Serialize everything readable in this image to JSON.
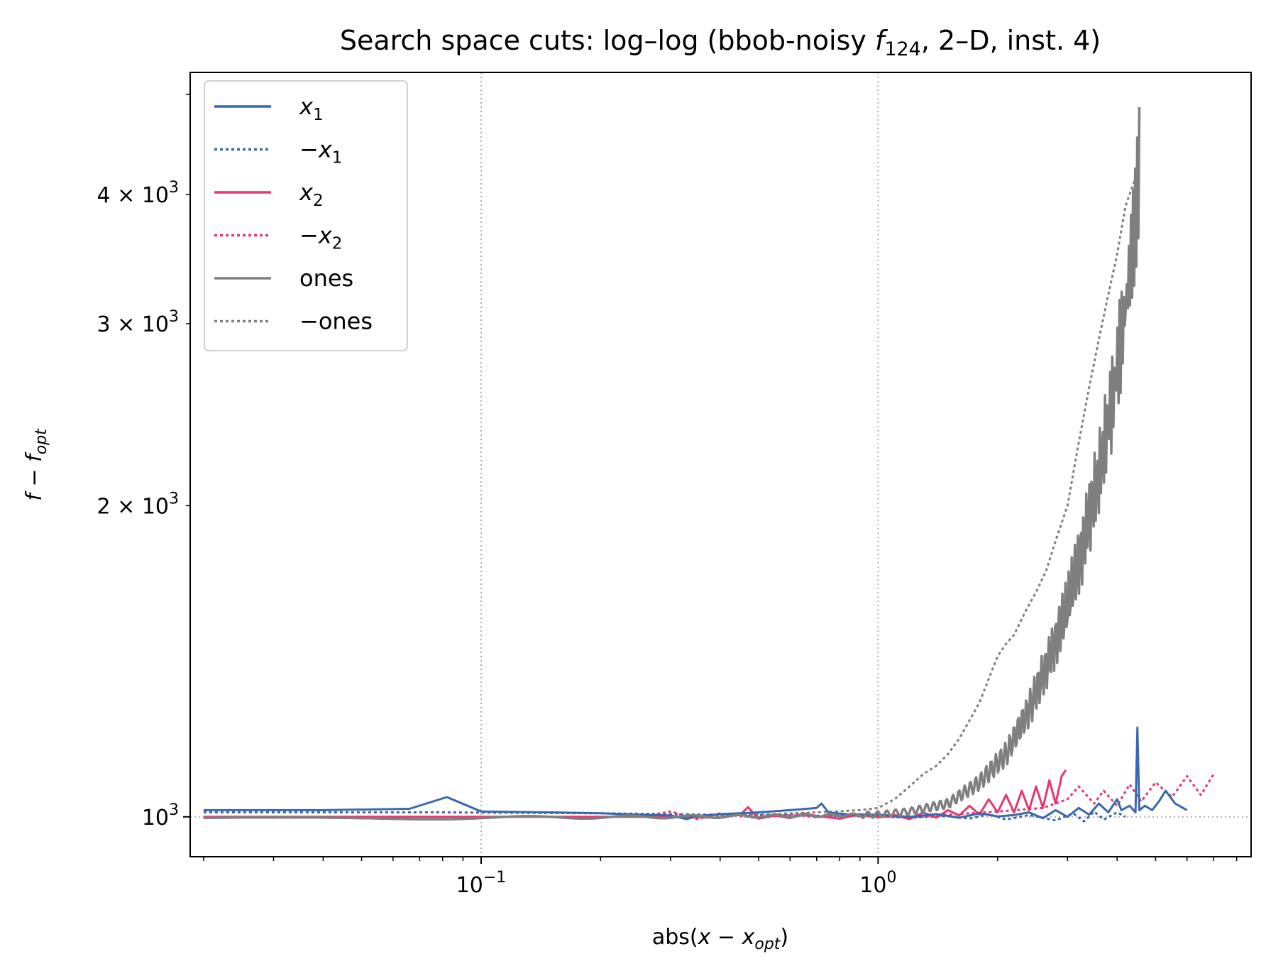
{
  "chart_data": {
    "type": "line",
    "title": "Search space cuts: log–log (bbob-noisy f124, 2–D, inst. 4)",
    "title_parts": {
      "main": "Search space cuts: log–log (bbob-noisy ",
      "func": "f",
      "func_sub": "124",
      "rest": ", 2–D, inst. 4)"
    },
    "xlabel": {
      "a": "abs(",
      "b": "x",
      "c": " − ",
      "d": "x",
      "e": "opt",
      "f": ")"
    },
    "ylabel": {
      "a": "f",
      "b": " − ",
      "c": "f",
      "d": "opt"
    },
    "x_scale": "log",
    "y_scale": "log",
    "xlim": [
      0.0185,
      8.7
    ],
    "ylim": [
      915,
      5250
    ],
    "x_ticks": [
      {
        "value": 0.1,
        "base": "10",
        "exp": "−1"
      },
      {
        "value": 1,
        "base": "10",
        "exp": "0"
      }
    ],
    "y_ticks": [
      {
        "value": 1000,
        "coef": "",
        "base": "10",
        "exp": "3"
      },
      {
        "value": 2000,
        "coef": "2 × ",
        "base": "10",
        "exp": "3"
      },
      {
        "value": 3000,
        "coef": "3 × ",
        "base": "10",
        "exp": "3"
      },
      {
        "value": 4000,
        "coef": "4 × ",
        "base": "10",
        "exp": "3"
      }
    ],
    "grid": {
      "x_lines": [
        0.1,
        1
      ],
      "y_lines": [
        1000
      ],
      "style": "dotted"
    },
    "legend": {
      "position": "top-left",
      "entries": [
        {
          "label_main": "x",
          "label_sub": "1",
          "prefix": "",
          "color": "#3a67ad",
          "dash": "solid"
        },
        {
          "label_main": "x",
          "label_sub": "1",
          "prefix": "−",
          "color": "#3a67ad",
          "dash": "dotted"
        },
        {
          "label_main": "x",
          "label_sub": "2",
          "prefix": "",
          "color": "#e8366f",
          "dash": "solid"
        },
        {
          "label_main": "x",
          "label_sub": "2",
          "prefix": "−",
          "color": "#e8366f",
          "dash": "dotted"
        },
        {
          "label_main": "ones",
          "label_sub": "",
          "prefix": "",
          "color": "#7f7f7f",
          "dash": "solid"
        },
        {
          "label_main": "ones",
          "label_sub": "",
          "prefix": "−",
          "color": "#7f7f7f",
          "dash": "dotted"
        }
      ]
    },
    "series": [
      {
        "name": "−x1",
        "color": "#3a67ad",
        "dash": "dotted",
        "x": [
          0.02,
          0.03,
          0.05,
          0.08,
          0.12,
          0.2,
          0.3,
          0.45,
          0.6,
          0.8,
          1.0,
          1.2,
          1.5,
          1.7,
          1.9,
          2.1,
          2.4,
          2.8,
          3.1,
          3.3,
          3.5,
          3.7,
          4.0,
          4.2
        ],
        "y": [
          1010,
          1010,
          1010,
          1010,
          1009,
          1008,
          1006,
          1004,
          1003,
          1002,
          1001,
          998,
          1002,
          996,
          1006,
          994,
          1004,
          992,
          1008,
          990,
          1012,
          994,
          1010,
          1000
        ]
      },
      {
        "name": "−x2",
        "color": "#e8366f",
        "dash": "dotted",
        "x": [
          0.26,
          0.3,
          0.35,
          0.4,
          0.5,
          0.6,
          0.7,
          0.8,
          1.0,
          1.2,
          1.5,
          2.0,
          2.6,
          3.0,
          3.2,
          3.5,
          3.7,
          4.0,
          4.3,
          4.6,
          5.0,
          5.5,
          6.0,
          6.5,
          7.0
        ],
        "y": [
          1002,
          1012,
          995,
          1008,
          997,
          1006,
          999,
          1004,
          1001,
          998,
          1005,
          1012,
          1020,
          1040,
          1070,
          1030,
          1060,
          1025,
          1075,
          1035,
          1080,
          1045,
          1095,
          1050,
          1100
        ]
      },
      {
        "name": "−ones",
        "color": "#7f7f7f",
        "dash": "dotted",
        "x": [
          0.3,
          0.5,
          0.7,
          0.9,
          1.0,
          1.1,
          1.2,
          1.3,
          1.4,
          1.5,
          1.6,
          1.7,
          1.8,
          1.9,
          2.0,
          2.1,
          2.2,
          2.35,
          2.5,
          2.65,
          2.8,
          3.0,
          3.2,
          3.4,
          3.6,
          3.8,
          4.0,
          4.2,
          4.5
        ],
        "y": [
          1000,
          1005,
          1010,
          1015,
          1020,
          1040,
          1070,
          1100,
          1120,
          1150,
          1190,
          1240,
          1290,
          1360,
          1430,
          1470,
          1500,
          1580,
          1650,
          1730,
          1850,
          2000,
          2300,
          2600,
          2900,
          3200,
          3500,
          3900,
          4200
        ]
      },
      {
        "name": "x2",
        "color": "#e8366f",
        "dash": "solid",
        "x": [
          0.02,
          0.05,
          0.1,
          0.2,
          0.3,
          0.4,
          0.45,
          0.47,
          0.5,
          0.55,
          0.6,
          0.65,
          0.7,
          0.8,
          0.9,
          1.0,
          1.1,
          1.2,
          1.3,
          1.4,
          1.5,
          1.6,
          1.7,
          1.8,
          1.9,
          2.0,
          2.1,
          2.2,
          2.3,
          2.4,
          2.5,
          2.6,
          2.7,
          2.8,
          2.9,
          2.97
        ],
        "y": [
          1000,
          1000,
          1000,
          1000,
          1000,
          998,
          1005,
          1022,
          996,
          1003,
          997,
          1008,
          1002,
          996,
          1006,
          999,
          1004,
          995,
          1010,
          998,
          1015,
          1003,
          1025,
          1005,
          1040,
          1010,
          1050,
          1010,
          1060,
          1015,
          1070,
          1020,
          1085,
          1030,
          1095,
          1110
        ]
      },
      {
        "name": "x1",
        "color": "#3a67ad",
        "dash": "solid",
        "x": [
          0.02,
          0.04,
          0.066,
          0.082,
          0.1,
          0.15,
          0.2,
          0.25,
          0.3,
          0.33,
          0.35,
          0.4,
          0.5,
          0.6,
          0.7,
          0.72,
          0.75,
          0.85,
          1.0,
          1.2,
          1.4,
          1.6,
          1.8,
          2.0,
          2.2,
          2.4,
          2.6,
          2.8,
          3.0,
          3.2,
          3.4,
          3.6,
          3.8,
          4.0,
          4.1,
          4.3,
          4.45,
          4.5,
          4.55,
          4.7,
          4.9,
          5.1,
          5.3,
          5.6,
          6.0
        ],
        "y": [
          1015,
          1015,
          1018,
          1045,
          1012,
          1010,
          1008,
          1005,
          1003,
          995,
          1002,
          1006,
          1010,
          1015,
          1020,
          1030,
          1010,
          1005,
          1005,
          1000,
          1006,
          998,
          1008,
          1001,
          1004,
          1010,
          997,
          1015,
          1000,
          1020,
          1005,
          1030,
          1010,
          1040,
          1015,
          1025,
          1010,
          1220,
          1015,
          1025,
          1015,
          1035,
          1060,
          1030,
          1015
        ]
      },
      {
        "name": "ones",
        "color": "#7f7f7f",
        "dash": "solid",
        "oscillating": true,
        "x_range": [
          0.02,
          4.55
        ],
        "y_base_points": [
          [
            0.02,
            995
          ],
          [
            0.1,
            998
          ],
          [
            0.3,
            1000
          ],
          [
            0.6,
            1002
          ],
          [
            1.0,
            1005
          ],
          [
            1.2,
            1012
          ],
          [
            1.5,
            1030
          ],
          [
            1.8,
            1080
          ],
          [
            2.1,
            1150
          ],
          [
            2.4,
            1270
          ],
          [
            2.7,
            1420
          ],
          [
            3.0,
            1600
          ],
          [
            3.3,
            1850
          ],
          [
            3.6,
            2150
          ],
          [
            3.9,
            2550
          ],
          [
            4.2,
            3100
          ],
          [
            4.45,
            3800
          ],
          [
            4.55,
            4300
          ]
        ]
      }
    ]
  }
}
